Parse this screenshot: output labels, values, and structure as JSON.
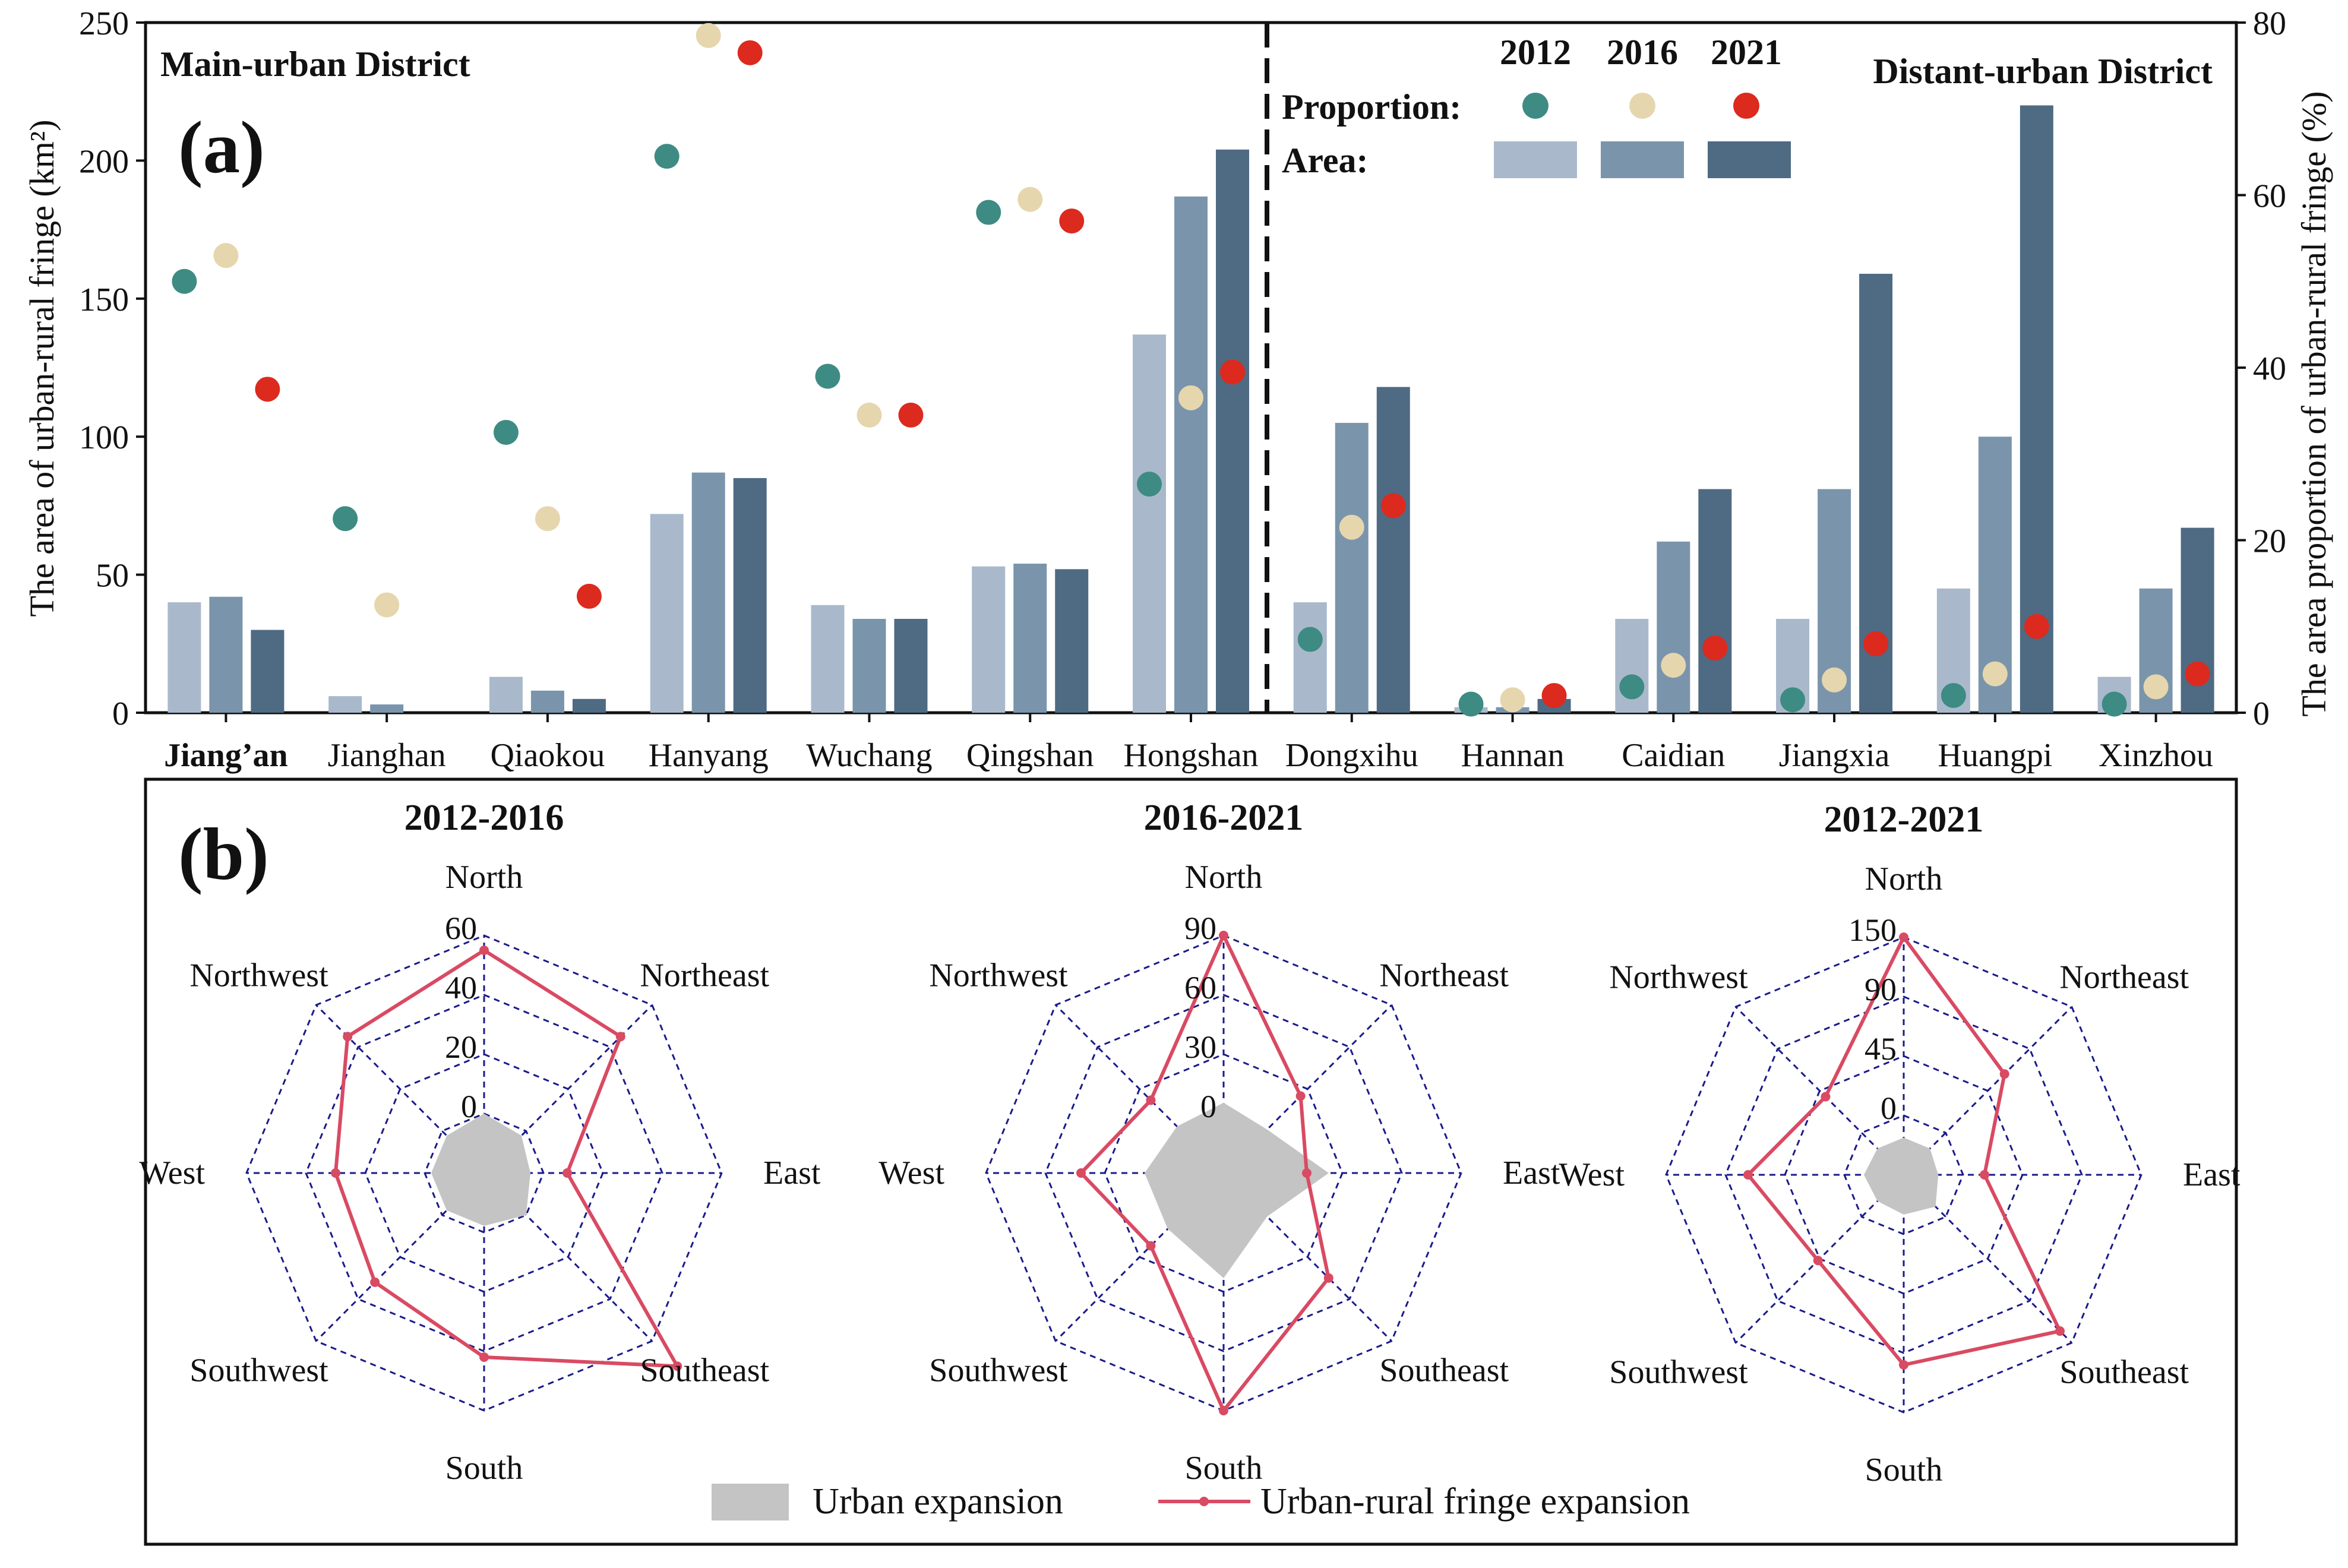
{
  "colors": {
    "bar2012": "#a9b9cb",
    "bar2016": "#7a95ab",
    "bar2021": "#4f6a83",
    "dot2012": "#3e8b84",
    "dot2016": "#e6d6ae",
    "dot2021": "#dc2a1e",
    "grid": "#1a1a8c",
    "fringe": "#d94a63",
    "urban": "#c4c4c4"
  },
  "chart_data": [
    {
      "type": "bar",
      "panel_label": "(a)",
      "ylabel_left": "The area of urban-rural fringe (km²)",
      "ylabel_right": "The area proportion of urban-rural fringe (%)",
      "ylim_left": [
        0,
        250
      ],
      "ylim_right": [
        0,
        80
      ],
      "yticks_left": [
        "0",
        "50",
        "100",
        "150",
        "200",
        "250"
      ],
      "yticks_right": [
        "0",
        "20",
        "40",
        "60",
        "80"
      ],
      "group_labels": {
        "main": "Main-urban District",
        "distant": "Distant-urban District"
      },
      "legend": {
        "years": [
          "2012",
          "2016",
          "2021"
        ],
        "proportion_label": "Proportion:",
        "area_label": "Area:"
      },
      "categories": [
        "Jiang’an",
        "Jianghan",
        "Qiaokou",
        "Hanyang",
        "Wuchang",
        "Qingshan",
        "Hongshan",
        "Dongxihu",
        "Hannan",
        "Caidian",
        "Jiangxia",
        "Huangpi",
        "Xinzhou"
      ],
      "series_area": [
        {
          "name": "2012",
          "values": [
            40,
            6,
            13,
            72,
            39,
            53,
            137,
            40,
            2,
            34,
            34,
            45,
            13
          ]
        },
        {
          "name": "2016",
          "values": [
            42,
            3,
            8,
            87,
            34,
            54,
            187,
            105,
            2,
            62,
            81,
            100,
            45
          ]
        },
        {
          "name": "2021",
          "values": [
            30,
            0,
            5,
            85,
            34,
            52,
            204,
            118,
            5,
            81,
            159,
            220,
            67
          ]
        }
      ],
      "series_proportion": [
        {
          "name": "2012",
          "values": [
            50,
            22.5,
            32.5,
            64.5,
            39,
            58,
            26.5,
            8.5,
            1,
            3,
            1.5,
            2,
            1
          ]
        },
        {
          "name": "2016",
          "values": [
            53,
            12.5,
            22.5,
            78.5,
            34.5,
            59.5,
            36.5,
            21.5,
            1.5,
            5.5,
            3.8,
            4.5,
            3
          ]
        },
        {
          "name": "2021",
          "values": [
            37.5,
            0,
            13.5,
            76.5,
            34.5,
            57,
            39.5,
            24,
            2,
            7.5,
            8,
            10,
            4.5
          ]
        }
      ]
    },
    {
      "type": "radar",
      "panel_label": "(b)",
      "directions": [
        "North",
        "Northeast",
        "East",
        "Southeast",
        "South",
        "Southwest",
        "West",
        "Northwest"
      ],
      "legend": {
        "urban": "Urban expansion",
        "fringe": "Urban-rural fringe expansion"
      },
      "charts": [
        {
          "title": "2012-2016",
          "max": 60,
          "ticks": [
            "0",
            "20",
            "40",
            "60"
          ],
          "urban": [
            5,
            4,
            3,
            5,
            4,
            4,
            4,
            4
          ],
          "fringe": [
            55,
            45,
            8,
            72,
            42,
            32,
            30,
            45
          ]
        },
        {
          "title": "2016-2021",
          "max": 90,
          "ticks": [
            "0",
            "30",
            "60",
            "90"
          ],
          "urban": [
            10,
            8,
            18,
            8,
            18,
            12,
            12,
            9
          ],
          "fringe": [
            90,
            25,
            12,
            45,
            90,
            22,
            42,
            22
          ]
        },
        {
          "title": "2012-2021",
          "max": 150,
          "ticks": [
            "0",
            "45",
            "90",
            "150"
          ],
          "urban": [
            4,
            4,
            3,
            7,
            5,
            4,
            5,
            4
          ],
          "fringe": [
            150,
            70,
            18,
            136,
            110,
            52,
            81,
            43
          ]
        }
      ]
    }
  ]
}
